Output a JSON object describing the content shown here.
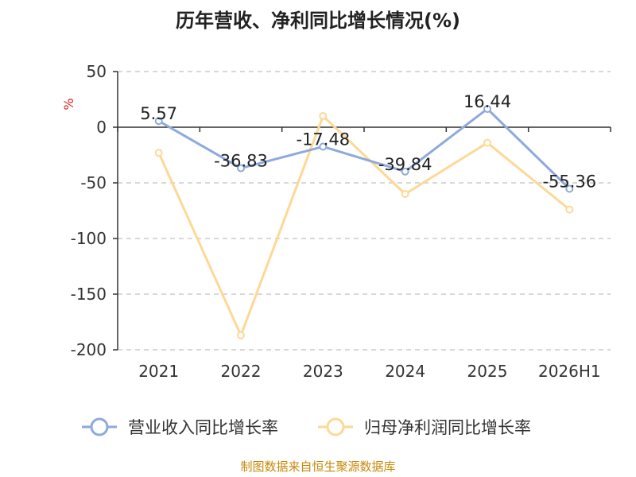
{
  "chart_data": {
    "type": "line",
    "title": "历年营收、净利同比增长情况(%)",
    "ylabel": "%",
    "xlabel": "",
    "categories": [
      "2021",
      "2022",
      "2023",
      "2024",
      "2025",
      "2026H1"
    ],
    "ylim": [
      -200,
      50
    ],
    "yticks": [
      50,
      0,
      -50,
      -100,
      -150,
      -200
    ],
    "grid": true,
    "legend_position": "bottom",
    "series": [
      {
        "name": "营业收入同比增长率",
        "values": [
          5.57,
          -36.83,
          -17.48,
          -39.84,
          16.44,
          -55.36
        ],
        "labels": [
          "5.57",
          "-36.83",
          "-17.48",
          "-39.84",
          "16.44",
          "-55.36"
        ],
        "color": "#8eaadb"
      },
      {
        "name": "归母净利润同比增长率",
        "values": [
          -23,
          -187,
          10,
          -60,
          -14,
          -74
        ],
        "color": "#fcd995"
      }
    ],
    "source": "制图数据来自恒生聚源数据库"
  },
  "colors": {
    "grid": "#cccccc",
    "axis": "#333333",
    "unit": "#e02020",
    "source": "#c8890a"
  }
}
